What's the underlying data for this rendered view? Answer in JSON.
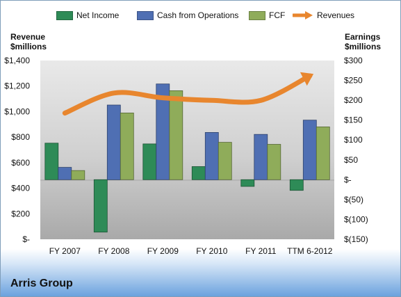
{
  "chart_data": {
    "type": "bar",
    "title": "Arris Group",
    "categories": [
      "FY 2007",
      "FY 2008",
      "FY 2009",
      "FY 2010",
      "FY 2011",
      "TTM 6-2012"
    ],
    "left_axis": {
      "label_line1": "Revenue",
      "label_line2": "$millions",
      "ylim": [
        0,
        1400
      ],
      "ticks": [
        {
          "value": 0,
          "label": "$-"
        },
        {
          "value": 200,
          "label": "$200"
        },
        {
          "value": 400,
          "label": "$400"
        },
        {
          "value": 600,
          "label": "$600"
        },
        {
          "value": 800,
          "label": "$800"
        },
        {
          "value": 1000,
          "label": "$1,000"
        },
        {
          "value": 1200,
          "label": "$1,200"
        },
        {
          "value": 1400,
          "label": "$1,400"
        }
      ]
    },
    "right_axis": {
      "label_line1": "Earnings",
      "label_line2": "$millions",
      "ylim": [
        -150,
        300
      ],
      "ticks": [
        {
          "value": -150,
          "label": "$(150)"
        },
        {
          "value": -100,
          "label": "$(100)"
        },
        {
          "value": -50,
          "label": "$(50)"
        },
        {
          "value": 0,
          "label": "$-"
        },
        {
          "value": 50,
          "label": "$50"
        },
        {
          "value": 100,
          "label": "$100"
        },
        {
          "value": 150,
          "label": "$150"
        },
        {
          "value": 200,
          "label": "$200"
        },
        {
          "value": 250,
          "label": "$250"
        },
        {
          "value": 300,
          "label": "$300"
        }
      ]
    },
    "series": [
      {
        "name": "Net Income",
        "axis": "right",
        "kind": "bar",
        "color": "#2e8b57",
        "values": [
          92,
          -132,
          90,
          33,
          -17,
          -27
        ]
      },
      {
        "name": "Cash from Operations",
        "axis": "right",
        "kind": "bar",
        "color": "#4f6fb3",
        "values": [
          31,
          188,
          241,
          119,
          114,
          150
        ]
      },
      {
        "name": "FCF",
        "axis": "right",
        "kind": "bar",
        "color": "#8fac5a",
        "values": [
          23,
          168,
          224,
          94,
          89,
          133
        ]
      },
      {
        "name": "Revenues",
        "axis": "left",
        "kind": "line",
        "color": "#e8862e",
        "values": [
          988,
          1145,
          1108,
          1088,
          1088,
          1280
        ]
      }
    ],
    "grid": false,
    "legend": "top"
  }
}
